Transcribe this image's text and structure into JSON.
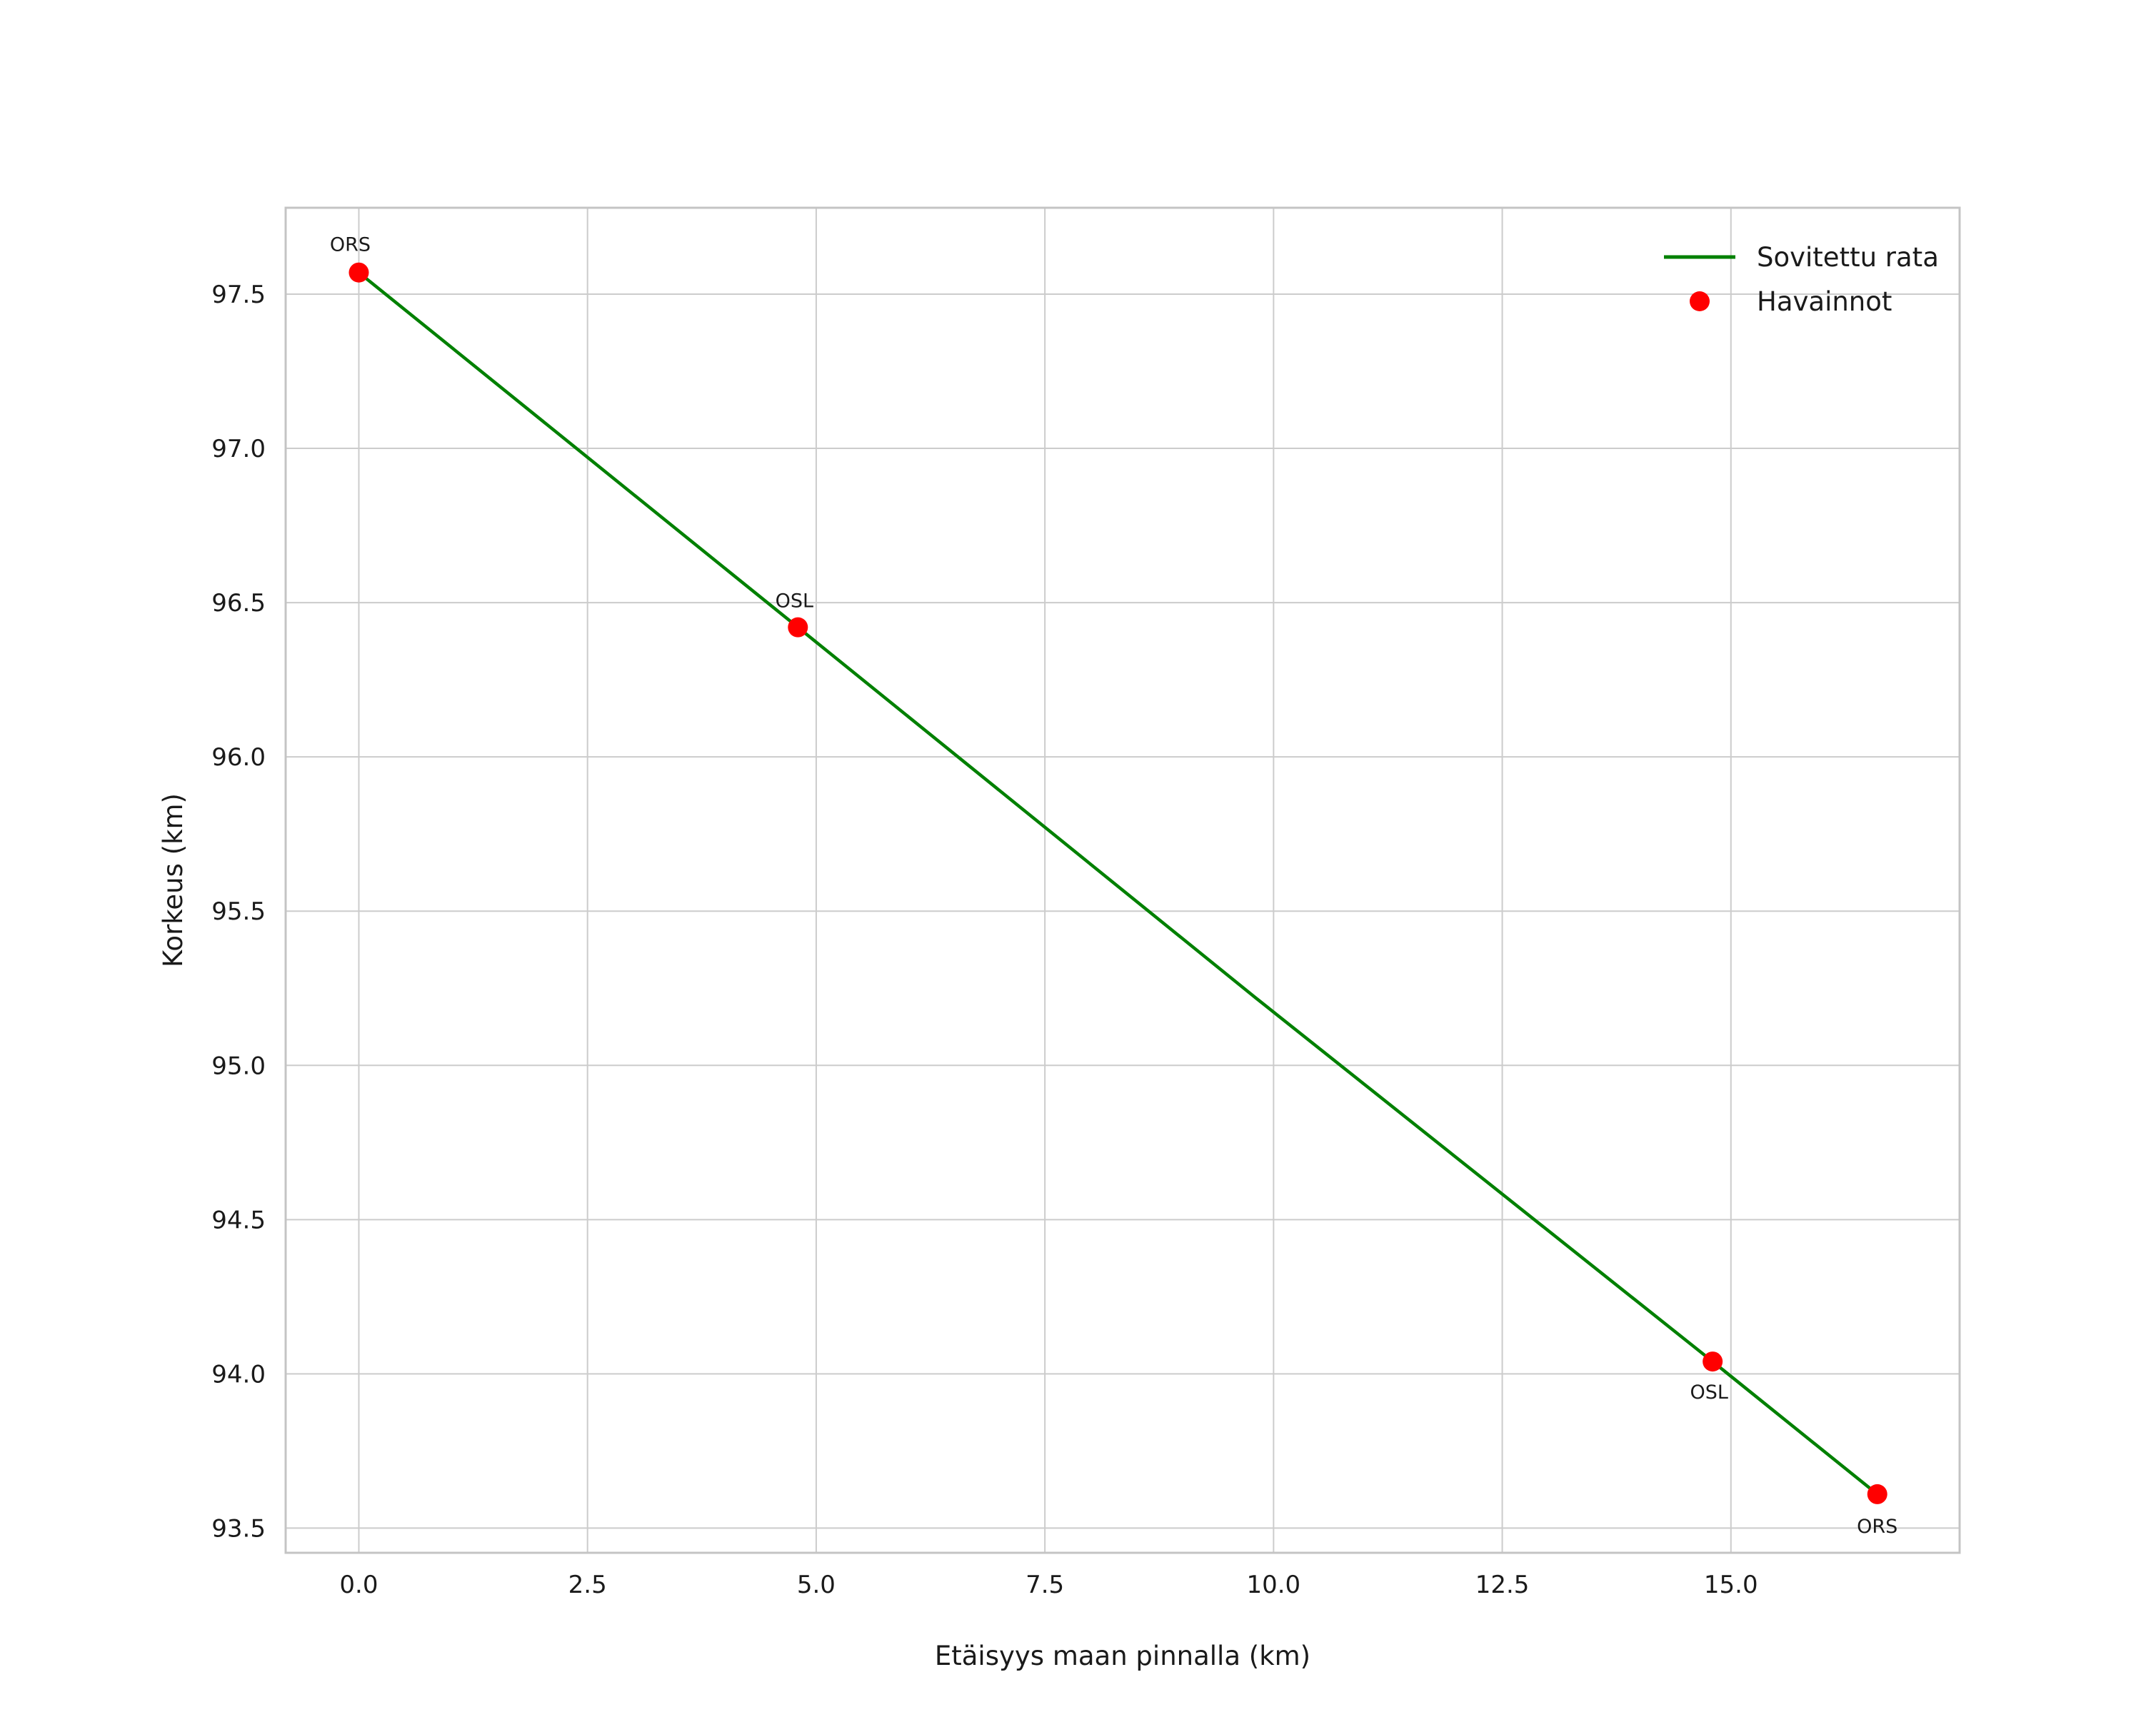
{
  "chart_data": {
    "type": "line",
    "title": "",
    "xlabel": "Etäisyys maan pinnalla (km)",
    "ylabel": "Korkeus (km)",
    "xlim": [
      -0.8,
      17.5
    ],
    "ylim": [
      93.42,
      97.78
    ],
    "x_ticks": [
      0.0,
      2.5,
      5.0,
      7.5,
      10.0,
      12.5,
      15.0
    ],
    "x_tick_labels": [
      "0.0",
      "2.5",
      "5.0",
      "7.5",
      "10.0",
      "12.5",
      "15.0"
    ],
    "y_ticks": [
      93.5,
      94.0,
      94.5,
      95.0,
      95.5,
      96.0,
      96.5,
      97.0,
      97.5
    ],
    "y_tick_labels": [
      "93.5",
      "94.0",
      "94.5",
      "95.0",
      "95.5",
      "96.0",
      "96.5",
      "97.0",
      "97.5"
    ],
    "grid": true,
    "background_color": "#ffffff",
    "grid_color": "#cccccc",
    "frame_color": "#c4c4c4",
    "series": [
      {
        "name": "Sovitettu rata",
        "type": "line",
        "color": "#008000",
        "points": [
          [
            0.0,
            97.57
          ],
          [
            4.8,
            96.42
          ],
          [
            9.8,
            95.22
          ],
          [
            14.8,
            94.04
          ],
          [
            16.6,
            93.61
          ]
        ]
      },
      {
        "name": "Havainnot",
        "type": "scatter",
        "color": "#ff0000",
        "points": [
          [
            0.0,
            97.57
          ],
          [
            4.8,
            96.42
          ],
          [
            14.8,
            94.04
          ],
          [
            16.6,
            93.61
          ]
        ],
        "labels": [
          "ORS",
          "OSL",
          "OSL",
          "ORS"
        ],
        "label_offsets": [
          [
            -12,
            -30
          ],
          [
            -5,
            -28
          ],
          [
            -5,
            52
          ],
          [
            0,
            54
          ]
        ]
      }
    ],
    "legend": {
      "position": "upper-right",
      "entries": [
        {
          "label": "Sovitettu rata",
          "marker": "line",
          "color": "#008000"
        },
        {
          "label": "Havainnot",
          "marker": "dot",
          "color": "#ff0000"
        }
      ]
    }
  }
}
